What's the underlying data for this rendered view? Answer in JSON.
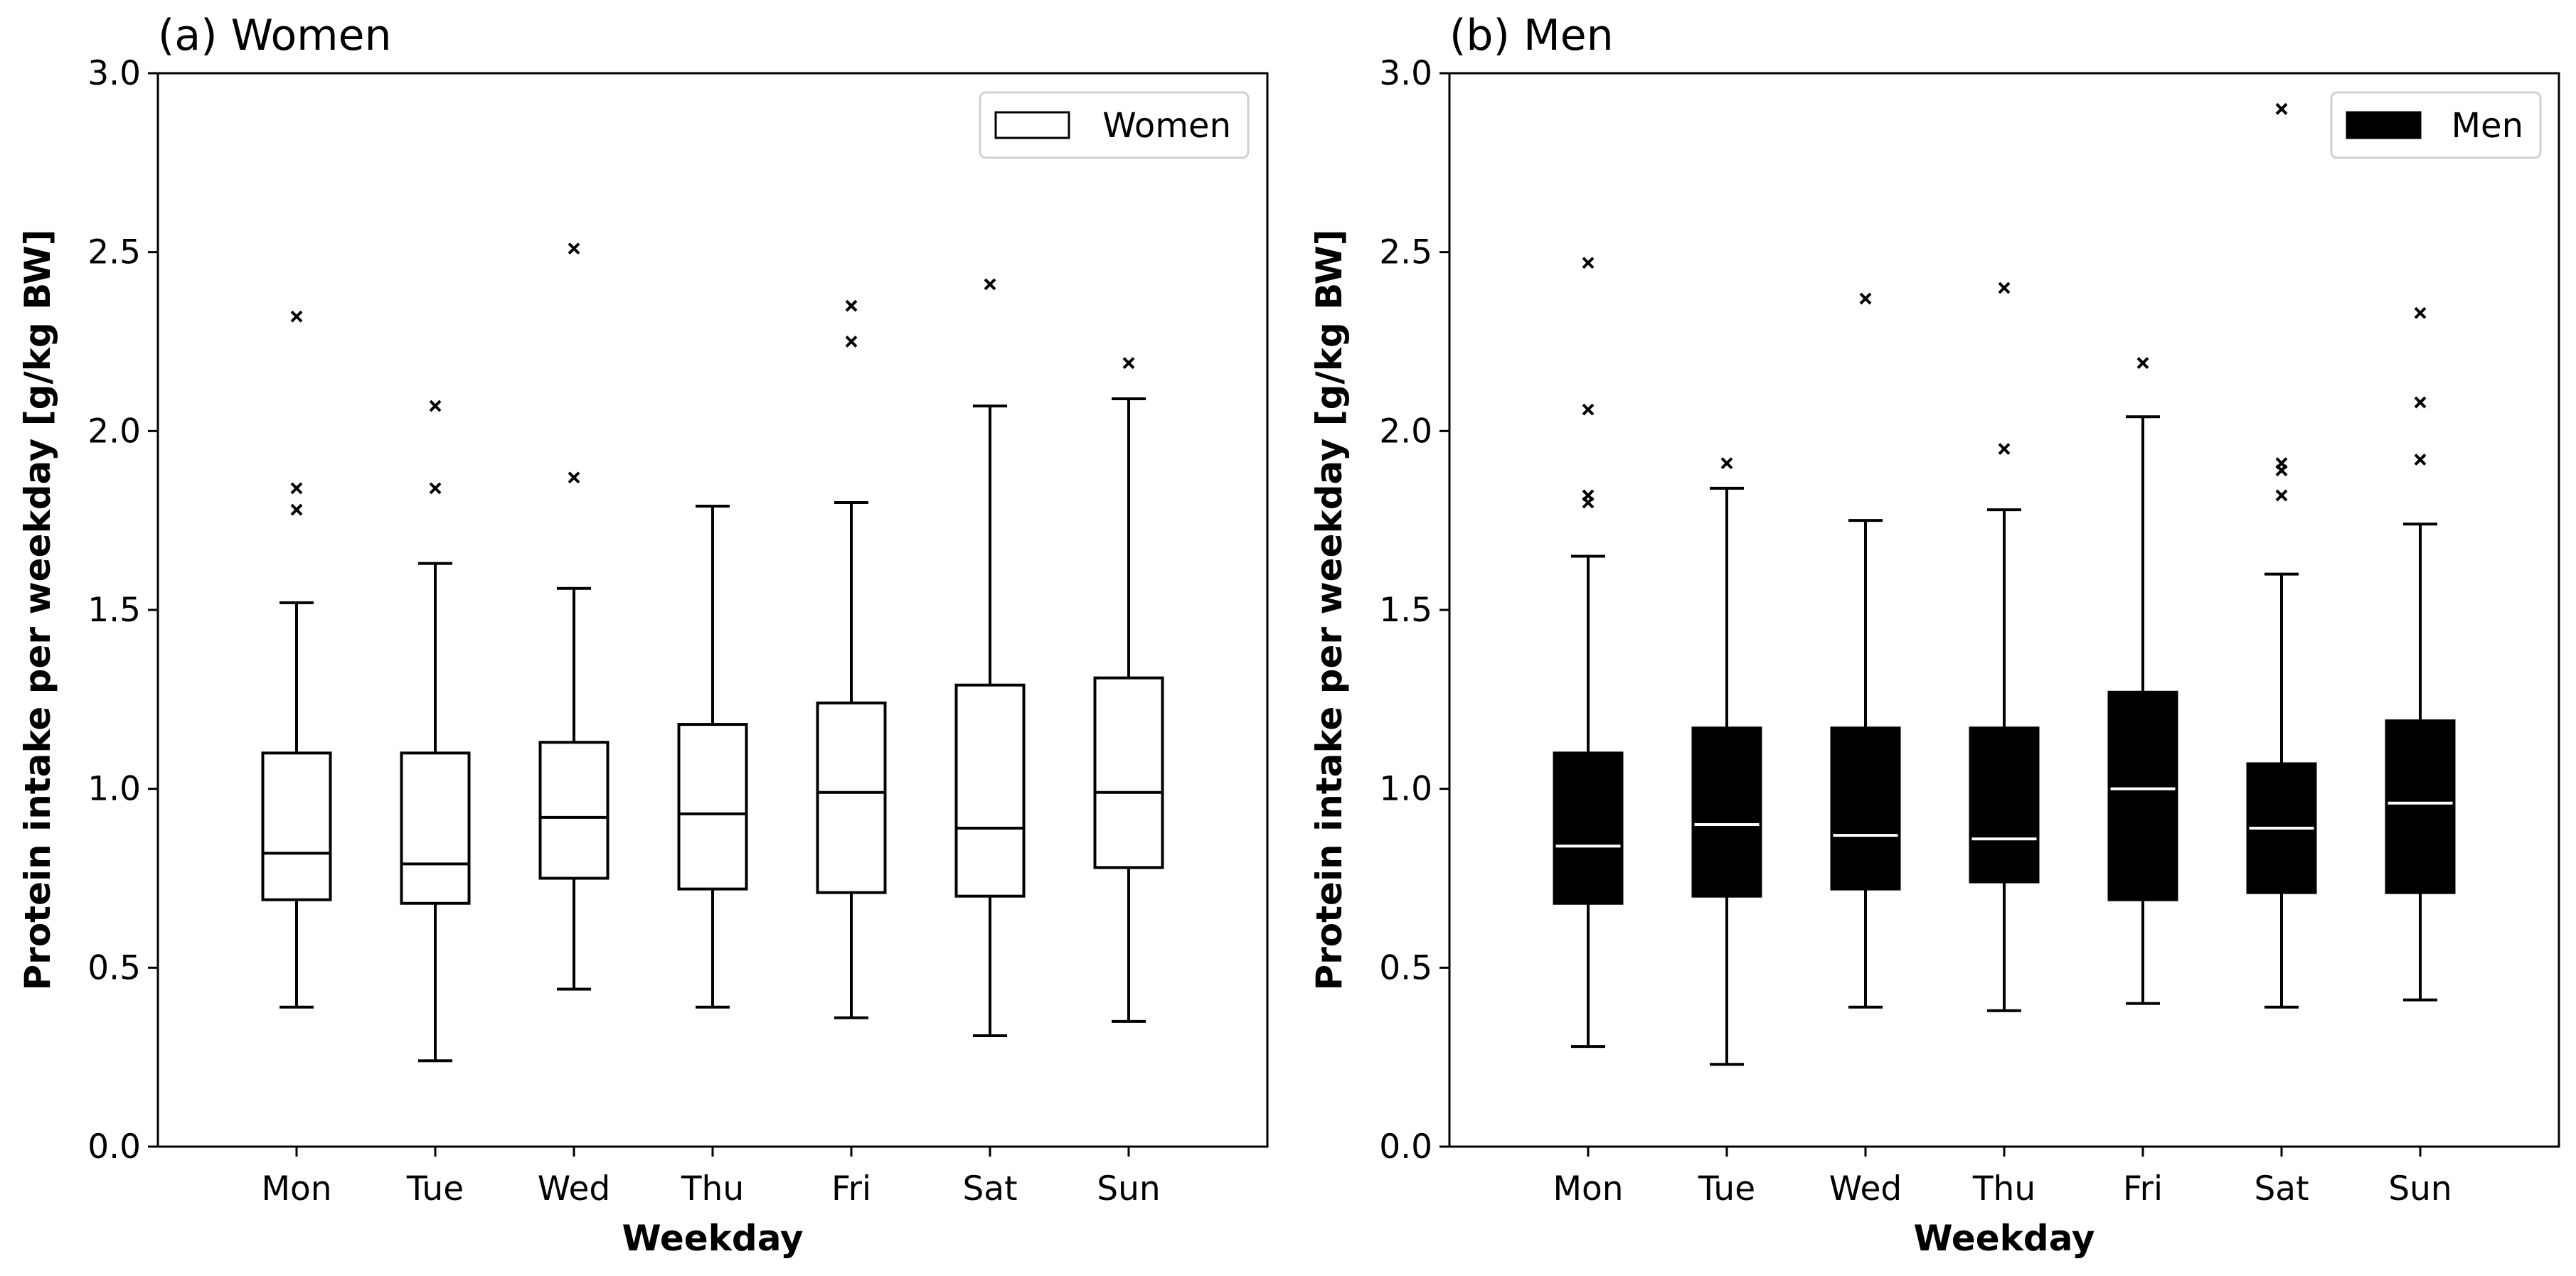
{
  "chart_data": [
    {
      "type": "box",
      "title": "(a) Women",
      "xlabel": "Weekday",
      "ylabel": "Protein intake per weekday [g/kg BW]",
      "ylim": [
        0,
        3.0
      ],
      "yticks": [
        0.0,
        0.5,
        1.0,
        1.5,
        2.0,
        2.5,
        3.0
      ],
      "ytick_labels": [
        "0.0",
        "0.5",
        "1.0",
        "1.5",
        "2.0",
        "2.5",
        "3.0"
      ],
      "categories": [
        "Mon",
        "Tue",
        "Wed",
        "Thu",
        "Fri",
        "Sat",
        "Sun"
      ],
      "legend": {
        "label": "Women",
        "position": "top-right"
      },
      "box_fill": "#ffffff",
      "median_color": "#000000",
      "boxes": [
        {
          "whisker_low": 0.39,
          "q1": 0.69,
          "median": 0.82,
          "q3": 1.1,
          "whisker_high": 1.52,
          "outliers": [
            1.78,
            1.84,
            2.32
          ]
        },
        {
          "whisker_low": 0.24,
          "q1": 0.68,
          "median": 0.79,
          "q3": 1.1,
          "whisker_high": 1.63,
          "outliers": [
            1.84,
            2.07
          ]
        },
        {
          "whisker_low": 0.44,
          "q1": 0.75,
          "median": 0.92,
          "q3": 1.13,
          "whisker_high": 1.56,
          "outliers": [
            1.87,
            2.51
          ]
        },
        {
          "whisker_low": 0.39,
          "q1": 0.72,
          "median": 0.93,
          "q3": 1.18,
          "whisker_high": 1.79,
          "outliers": []
        },
        {
          "whisker_low": 0.36,
          "q1": 0.71,
          "median": 0.99,
          "q3": 1.24,
          "whisker_high": 1.8,
          "outliers": [
            2.25,
            2.35
          ]
        },
        {
          "whisker_low": 0.31,
          "q1": 0.7,
          "median": 0.89,
          "q3": 1.29,
          "whisker_high": 2.07,
          "outliers": [
            2.41
          ]
        },
        {
          "whisker_low": 0.35,
          "q1": 0.78,
          "median": 0.99,
          "q3": 1.31,
          "whisker_high": 2.09,
          "outliers": [
            2.19
          ]
        }
      ]
    },
    {
      "type": "box",
      "title": "(b) Men",
      "xlabel": "Weekday",
      "ylabel": "Protein intake per weekday [g/kg BW]",
      "ylim": [
        0,
        3.0
      ],
      "yticks": [
        0.0,
        0.5,
        1.0,
        1.5,
        2.0,
        2.5,
        3.0
      ],
      "ytick_labels": [
        "0.0",
        "0.5",
        "1.0",
        "1.5",
        "2.0",
        "2.5",
        "3.0"
      ],
      "categories": [
        "Mon",
        "Tue",
        "Wed",
        "Thu",
        "Fri",
        "Sat",
        "Sun"
      ],
      "legend": {
        "label": "Men",
        "position": "top-right"
      },
      "box_fill": "#000000",
      "median_color": "#ffffff",
      "boxes": [
        {
          "whisker_low": 0.28,
          "q1": 0.68,
          "median": 0.84,
          "q3": 1.1,
          "whisker_high": 1.65,
          "outliers": [
            1.8,
            1.82,
            2.06,
            2.47
          ]
        },
        {
          "whisker_low": 0.23,
          "q1": 0.7,
          "median": 0.9,
          "q3": 1.17,
          "whisker_high": 1.84,
          "outliers": [
            1.91
          ]
        },
        {
          "whisker_low": 0.39,
          "q1": 0.72,
          "median": 0.87,
          "q3": 1.17,
          "whisker_high": 1.75,
          "outliers": [
            2.37
          ]
        },
        {
          "whisker_low": 0.38,
          "q1": 0.74,
          "median": 0.86,
          "q3": 1.17,
          "whisker_high": 1.78,
          "outliers": [
            1.95,
            2.4
          ]
        },
        {
          "whisker_low": 0.4,
          "q1": 0.69,
          "median": 1.0,
          "q3": 1.27,
          "whisker_high": 2.04,
          "outliers": [
            2.19
          ]
        },
        {
          "whisker_low": 0.39,
          "q1": 0.71,
          "median": 0.89,
          "q3": 1.07,
          "whisker_high": 1.6,
          "outliers": [
            1.82,
            1.89,
            1.91,
            2.9
          ]
        },
        {
          "whisker_low": 0.41,
          "q1": 0.71,
          "median": 0.96,
          "q3": 1.19,
          "whisker_high": 1.74,
          "outliers": [
            1.92,
            2.08,
            2.33
          ]
        }
      ]
    }
  ]
}
